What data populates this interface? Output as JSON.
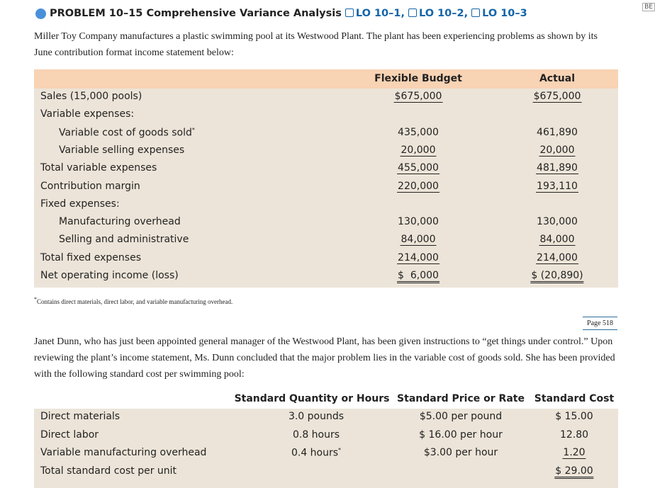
{
  "corner_tab": "BE",
  "header": {
    "title": "PROBLEM 10–15 Comprehensive Variance Analysis",
    "objectives": [
      "LO 10–1,",
      "LO 10–2,",
      "LO 10–3"
    ]
  },
  "intro": "Miller Toy Company manufactures a plastic swimming pool at its Westwood Plant. The plant has been experiencing problems as shown by its June contribution format income statement below:",
  "income_statement": {
    "columns": [
      "Flexible Budget",
      "Actual"
    ],
    "rows": [
      {
        "label": "Sales (15,000 pools)",
        "cells": [
          "$675,000",
          "$675,000"
        ],
        "rule": "single"
      },
      {
        "label": "Variable expenses:"
      },
      {
        "label": "Variable cost of goods sold",
        "mark": "*",
        "indent": true,
        "cells": [
          "435,000",
          "461,890"
        ]
      },
      {
        "label": "Variable selling expenses",
        "indent": true,
        "cells": [
          "20,000",
          "20,000"
        ],
        "rule": "single"
      },
      {
        "label": "Total variable expenses",
        "cells": [
          "455,000",
          "481,890"
        ],
        "rule": "single"
      },
      {
        "label": "Contribution margin",
        "cells": [
          "220,000",
          "193,110"
        ],
        "rule": "single"
      },
      {
        "label": "Fixed expenses:"
      },
      {
        "label": "Manufacturing overhead",
        "indent": true,
        "cells": [
          "130,000",
          "130,000"
        ]
      },
      {
        "label": "Selling and administrative",
        "indent": true,
        "cells": [
          "84,000",
          "84,000"
        ],
        "rule": "single"
      },
      {
        "label": "Total fixed expenses",
        "cells": [
          "214,000",
          "214,000"
        ],
        "rule": "single"
      },
      {
        "label": "Net operating income (loss)",
        "cells": [
          "$  6,000",
          "$ (20,890)"
        ],
        "rule": "double"
      }
    ]
  },
  "footnote": {
    "mark": "*",
    "text": "Contains direct materials, direct labor, and variable manufacturing overhead."
  },
  "page_marker": "Page 518",
  "body": "Janet Dunn, who has just been appointed general manager of the Westwood Plant, has been given instructions to “get things under control.” Upon reviewing the plant’s income statement, Ms. Dunn concluded that the major problem lies in the variable cost of goods sold. She has been provided with the following standard cost per swimming pool:",
  "standard_cost": {
    "columns": [
      "Standard Quantity or Hours",
      "Standard Price or Rate",
      "Standard Cost"
    ],
    "rows": [
      {
        "label": "Direct materials",
        "cells": [
          "3.0 pounds",
          "$5.00 per pound",
          "$ 15.00"
        ]
      },
      {
        "label": "Direct labor",
        "cells": [
          "0.8 hours",
          "$ 16.00 per hour",
          "12.80"
        ]
      },
      {
        "label": "Variable manufacturing overhead",
        "cells": [
          "0.4 hours",
          "$3.00 per hour",
          "1.20"
        ],
        "cell_mark": "*",
        "rule_last": "single"
      },
      {
        "label": "Total standard cost per unit",
        "cells_last": "$ 29.00",
        "rule_last": "double"
      }
    ]
  }
}
